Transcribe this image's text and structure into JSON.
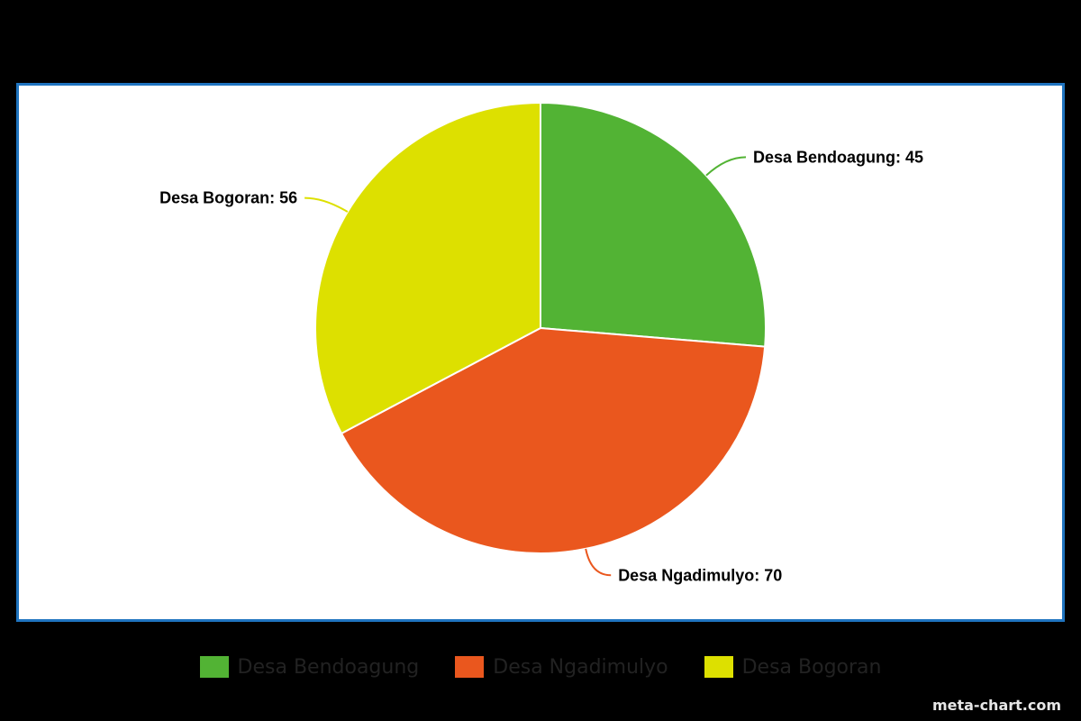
{
  "chart_data": {
    "type": "pie",
    "title": "",
    "slices": [
      {
        "label": "Desa Bendoagung",
        "value": 45,
        "color": "#52b334",
        "data_label": "Desa Bendoagung: 45"
      },
      {
        "label": "Desa Ngadimulyo",
        "value": 70,
        "color": "#ea571e",
        "data_label": "Desa Ngadimulyo: 70"
      },
      {
        "label": "Desa Bogoran",
        "value": 56,
        "color": "#dde000",
        "data_label": "Desa Bogoran: 56"
      }
    ],
    "legend_position": "bottom",
    "background": "#ffffff",
    "frame_color": "#1f74c0"
  },
  "legend": {
    "items": [
      {
        "label": "Desa Bendoagung",
        "color": "#52b334"
      },
      {
        "label": "Desa Ngadimulyo",
        "color": "#ea571e"
      },
      {
        "label": "Desa Bogoran",
        "color": "#dde000"
      }
    ]
  },
  "watermark": "meta-chart.com"
}
